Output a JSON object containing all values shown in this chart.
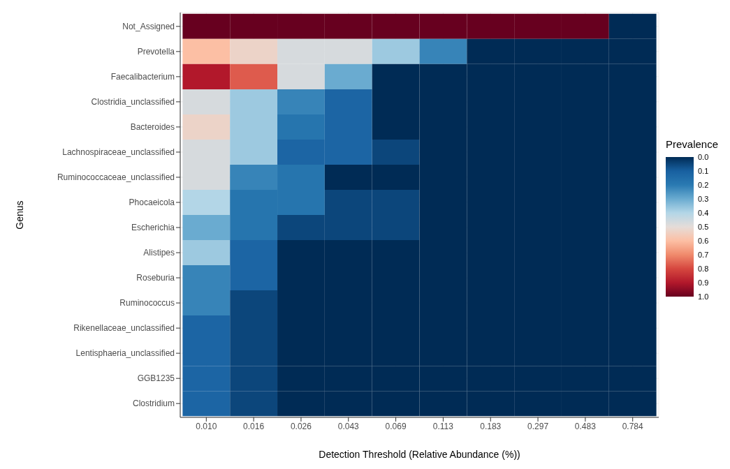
{
  "chart_data": {
    "type": "heatmap",
    "xlabel": "Detection Threshold (Relative Abundance (%))",
    "ylabel": "Genus",
    "clabel": "Prevalence",
    "categories": [
      "0.010",
      "0.016",
      "0.026",
      "0.043",
      "0.069",
      "0.113",
      "0.183",
      "0.297",
      "0.483",
      "0.784"
    ],
    "y_categories": [
      "Not_Assigned",
      "Prevotella",
      "Faecalibacterium",
      "Clostridia_unclassified",
      "Bacteroides",
      "Lachnospiraceae_unclassified",
      "Ruminococcaceae_unclassified",
      "Phocaeicola",
      "Escherichia",
      "Alistipes",
      "Roseburia",
      "Ruminococcus",
      "Rikenellaceae_unclassified",
      "Lentisphaeria_unclassified",
      "GGB1235",
      "Clostridium"
    ],
    "cells": [
      [
        1.0,
        1.0,
        1.0,
        1.0,
        1.0,
        1.0,
        1.0,
        1.0,
        1.0,
        0.0
      ],
      [
        0.6,
        0.53,
        0.47,
        0.47,
        0.37,
        0.22,
        0.0,
        0.0,
        0.0,
        0.0
      ],
      [
        0.9,
        0.77,
        0.47,
        0.3,
        0.0,
        0.0,
        0.0,
        0.0,
        0.0,
        0.0
      ],
      [
        0.47,
        0.37,
        0.22,
        0.12,
        0.0,
        0.0,
        0.0,
        0.0,
        0.0,
        0.0
      ],
      [
        0.53,
        0.37,
        0.18,
        0.12,
        0.0,
        0.0,
        0.0,
        0.0,
        0.0,
        0.0
      ],
      [
        0.47,
        0.37,
        0.12,
        0.12,
        0.05,
        0.0,
        0.0,
        0.0,
        0.0,
        0.0
      ],
      [
        0.47,
        0.22,
        0.18,
        0.0,
        0.0,
        0.0,
        0.0,
        0.0,
        0.0,
        0.0
      ],
      [
        0.4,
        0.18,
        0.18,
        0.05,
        0.05,
        0.0,
        0.0,
        0.0,
        0.0,
        0.0
      ],
      [
        0.3,
        0.18,
        0.05,
        0.05,
        0.05,
        0.0,
        0.0,
        0.0,
        0.0,
        0.0
      ],
      [
        0.37,
        0.12,
        0.0,
        0.0,
        0.0,
        0.0,
        0.0,
        0.0,
        0.0,
        0.0
      ],
      [
        0.22,
        0.12,
        0.0,
        0.0,
        0.0,
        0.0,
        0.0,
        0.0,
        0.0,
        0.0
      ],
      [
        0.22,
        0.05,
        0.0,
        0.0,
        0.0,
        0.0,
        0.0,
        0.0,
        0.0,
        0.0
      ],
      [
        0.12,
        0.05,
        0.0,
        0.0,
        0.0,
        0.0,
        0.0,
        0.0,
        0.0,
        0.0
      ],
      [
        0.12,
        0.05,
        0.0,
        0.0,
        0.0,
        0.0,
        0.0,
        0.0,
        0.0,
        0.0
      ],
      [
        0.12,
        0.05,
        0.0,
        0.0,
        0.0,
        0.0,
        0.0,
        0.0,
        0.0,
        0.0
      ],
      [
        0.12,
        0.05,
        0.0,
        0.0,
        0.0,
        0.0,
        0.0,
        0.0,
        0.0,
        0.0
      ]
    ],
    "clim": [
      0,
      1
    ],
    "cticks": [
      {
        "value": 0,
        "label": "0.0"
      },
      {
        "value": 0.1,
        "label": "0.1"
      },
      {
        "value": 0.2,
        "label": "0.2"
      },
      {
        "value": 0.3,
        "label": "0.3"
      },
      {
        "value": 0.4,
        "label": "0.4"
      },
      {
        "value": 0.5,
        "label": "0.5"
      },
      {
        "value": 0.6,
        "label": "0.6"
      },
      {
        "value": 0.7,
        "label": "0.7"
      },
      {
        "value": 0.8,
        "label": "0.8"
      },
      {
        "value": 0.9,
        "label": "0.9"
      },
      {
        "value": 1.0,
        "label": "1.0"
      }
    ],
    "grid": true
  }
}
